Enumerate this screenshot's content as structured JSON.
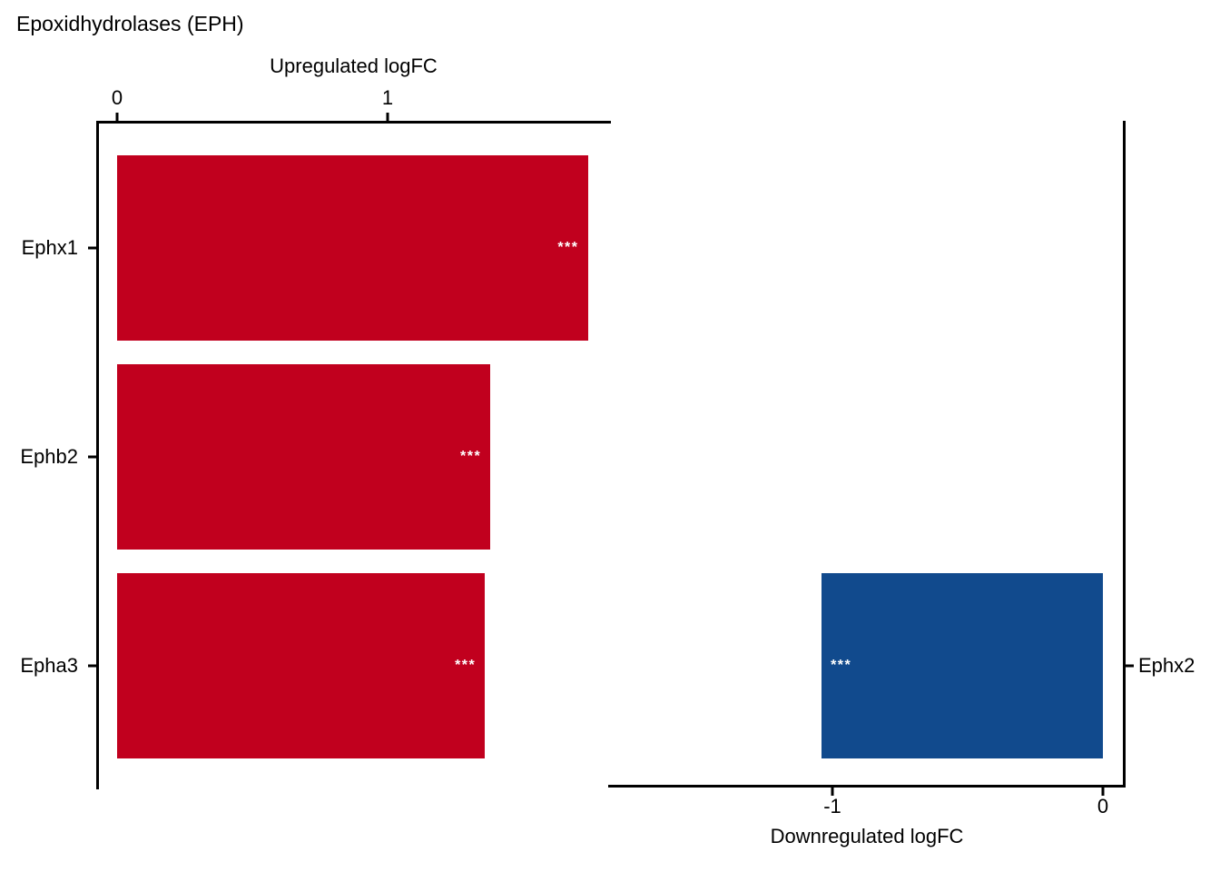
{
  "figure_title": "Epoxidhydrolases (EPH)",
  "colors": {
    "upregulated_bar": "#c1001e",
    "downregulated_bar": "#114a8d",
    "significance_text": "#ffffff",
    "axis": "#000000",
    "background": "#ffffff"
  },
  "chart_data": [
    {
      "type": "bar",
      "orientation": "horizontal",
      "title": "Upregulated logFC",
      "axis_side": "top",
      "category_axis_side": "left",
      "categories": [
        "Ephx1",
        "Ephb2",
        "Epha3"
      ],
      "values": [
        1.74,
        1.38,
        1.36
      ],
      "significance": [
        "***",
        "***",
        "***"
      ],
      "row_indices": [
        0,
        1,
        2
      ],
      "xticks": [
        0,
        1
      ],
      "xlim": [
        0,
        1.83
      ],
      "bar_color": "#c1001e",
      "grid": false,
      "legend": null
    },
    {
      "type": "bar",
      "orientation": "horizontal",
      "title": "Downregulated logFC",
      "axis_side": "bottom",
      "category_axis_side": "right",
      "categories": [
        "Ephx2"
      ],
      "values": [
        -1.04
      ],
      "significance": [
        "***"
      ],
      "row_indices": [
        2
      ],
      "xticks": [
        -1,
        0
      ],
      "xlim": [
        -1.83,
        0.08
      ],
      "bar_color": "#114a8d",
      "grid": false,
      "legend": null
    }
  ]
}
